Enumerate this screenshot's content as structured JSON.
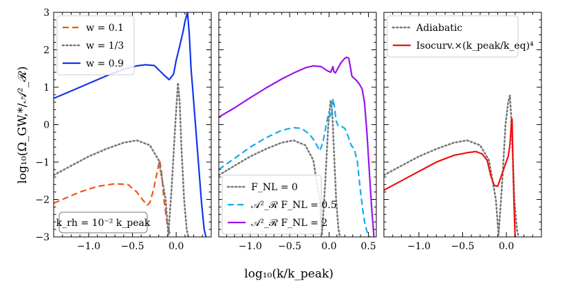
{
  "figure": {
    "xlabel": "log₁₀(k/k_peak)",
    "ylabel": "log₁₀(Ω_GW,*/𝒜²_ℛ)"
  },
  "chart_data": [
    {
      "type": "line",
      "panel": "left",
      "xlim": [
        -1.4,
        0.4
      ],
      "ylim": [
        -3,
        3
      ],
      "xticks": [
        -1.0,
        -0.5,
        0.0
      ],
      "xtick_labels": [
        "−1.0",
        "−0.5",
        "0.0"
      ],
      "yticks": [
        -3,
        -2,
        -1,
        0,
        1,
        2,
        3
      ],
      "ytick_labels": [
        "−3",
        "−2",
        "−1",
        "0",
        "1",
        "2",
        "3"
      ],
      "legend_position": "upper-left",
      "annotation": "k_rh = 10⁻² k_peak",
      "series": [
        {
          "name": "w = 0.1",
          "color": "#ee5511",
          "dash": "dashed",
          "x": [
            -1.4,
            -1.3,
            -1.1,
            -0.9,
            -0.7,
            -0.55,
            -0.45,
            -0.38,
            -0.33,
            -0.3,
            -0.26,
            -0.22,
            -0.19,
            -0.17,
            -0.14,
            -0.1,
            -0.06
          ],
          "y": [
            -2.1,
            -2.0,
            -1.8,
            -1.65,
            -1.58,
            -1.6,
            -1.8,
            -2.02,
            -2.15,
            -2.08,
            -1.75,
            -1.3,
            -0.95,
            -1.2,
            -2.0,
            -2.7,
            -3.0
          ]
        },
        {
          "name": "w = 1/3",
          "color": "#777777",
          "dash": "dotted",
          "x": [
            -1.4,
            -1.2,
            -1.0,
            -0.8,
            -0.6,
            -0.45,
            -0.3,
            -0.2,
            -0.12,
            -0.09,
            -0.05,
            -0.01,
            0.02,
            0.04,
            0.06,
            0.09,
            0.12,
            0.14
          ],
          "y": [
            -1.35,
            -1.1,
            -0.85,
            -0.65,
            -0.48,
            -0.42,
            -0.55,
            -0.95,
            -2.0,
            -2.95,
            -1.6,
            0.0,
            1.12,
            0.6,
            -0.6,
            -2.0,
            -2.8,
            -3.0
          ]
        },
        {
          "name": "w = 0.9",
          "color": "#1133ee",
          "dash": "solid",
          "x": [
            -1.4,
            -1.2,
            -1.0,
            -0.8,
            -0.6,
            -0.45,
            -0.35,
            -0.25,
            -0.15,
            -0.08,
            -0.03,
            0.0,
            0.03,
            0.06,
            0.08,
            0.1,
            0.13,
            0.15,
            0.17,
            0.2,
            0.23,
            0.26,
            0.29,
            0.32,
            0.34
          ],
          "y": [
            0.7,
            0.9,
            1.1,
            1.3,
            1.48,
            1.57,
            1.6,
            1.58,
            1.35,
            1.2,
            1.35,
            1.72,
            2.0,
            2.3,
            2.5,
            2.75,
            3.0,
            2.4,
            1.5,
            0.6,
            -0.3,
            -1.2,
            -2.1,
            -2.8,
            -3.0
          ]
        }
      ]
    },
    {
      "type": "line",
      "panel": "middle",
      "xlim": [
        -1.4,
        0.6
      ],
      "ylim": [
        -3,
        3
      ],
      "xticks": [
        -1.0,
        -0.5,
        0.0,
        0.5
      ],
      "xtick_labels": [
        "−1.0",
        "−0.5",
        "0.0",
        "0.5"
      ],
      "yticks": [
        -3,
        -2,
        -1,
        0,
        1,
        2,
        3
      ],
      "legend_position": "lower-left",
      "series": [
        {
          "name": "F_NL = 0",
          "color": "#777777",
          "dash": "dotted",
          "x": [
            -1.4,
            -1.2,
            -1.0,
            -0.8,
            -0.6,
            -0.45,
            -0.3,
            -0.2,
            -0.12,
            -0.09,
            -0.05,
            -0.01,
            0.02,
            0.04,
            0.06,
            0.09,
            0.12,
            0.14
          ],
          "y": [
            -1.35,
            -1.1,
            -0.85,
            -0.65,
            -0.48,
            -0.42,
            -0.55,
            -0.95,
            -2.0,
            -2.95,
            -1.6,
            0.0,
            0.65,
            0.35,
            -0.6,
            -2.0,
            -2.8,
            -3.0
          ]
        },
        {
          "name": "𝒜²_ℛ F_NL = 0.5",
          "color": "#11aaee",
          "dash": "dashed",
          "x": [
            -1.4,
            -1.2,
            -1.0,
            -0.8,
            -0.6,
            -0.45,
            -0.35,
            -0.25,
            -0.18,
            -0.12,
            -0.08,
            -0.04,
            0.0,
            0.03,
            0.05,
            0.07,
            0.09,
            0.12,
            0.16,
            0.2,
            0.24,
            0.28,
            0.32,
            0.36,
            0.4,
            0.43,
            0.46,
            0.49,
            0.52
          ],
          "y": [
            -1.2,
            -0.9,
            -0.6,
            -0.35,
            -0.15,
            -0.08,
            -0.1,
            -0.25,
            -0.45,
            -0.7,
            -0.5,
            -0.05,
            0.35,
            0.2,
            0.7,
            0.45,
            0.1,
            -0.05,
            -0.05,
            -0.1,
            -0.3,
            -0.55,
            -0.65,
            -1.0,
            -1.8,
            -2.3,
            -2.7,
            -2.9,
            -3.0
          ]
        },
        {
          "name": "𝒜²_ℛ F_NL = 2",
          "color": "#9911ee",
          "dash": "solid",
          "x": [
            -1.4,
            -1.2,
            -1.0,
            -0.8,
            -0.6,
            -0.45,
            -0.3,
            -0.2,
            -0.1,
            -0.03,
            0.02,
            0.04,
            0.05,
            0.06,
            0.08,
            0.11,
            0.15,
            0.19,
            0.22,
            0.25,
            0.27,
            0.29,
            0.31,
            0.34,
            0.38,
            0.42,
            0.45,
            0.48,
            0.51,
            0.54,
            0.57
          ],
          "y": [
            0.2,
            0.45,
            0.72,
            0.98,
            1.22,
            1.38,
            1.52,
            1.57,
            1.55,
            1.45,
            1.4,
            1.5,
            1.55,
            1.42,
            1.38,
            1.5,
            1.65,
            1.75,
            1.8,
            1.78,
            1.55,
            1.3,
            1.25,
            1.2,
            1.1,
            0.95,
            0.6,
            -0.2,
            -1.2,
            -2.2,
            -3.0
          ]
        }
      ]
    },
    {
      "type": "line",
      "panel": "right",
      "xlim": [
        -1.4,
        0.4
      ],
      "ylim": [
        -3,
        3
      ],
      "xticks": [
        -1.0,
        -0.5,
        0.0
      ],
      "xtick_labels": [
        "−1.0",
        "−0.5",
        "0.0"
      ],
      "yticks": [
        -3,
        -2,
        -1,
        0,
        1,
        2,
        3
      ],
      "legend_position": "upper-left",
      "series": [
        {
          "name": "Adiabatic",
          "color": "#777777",
          "dash": "dotted",
          "x": [
            -1.4,
            -1.2,
            -1.0,
            -0.8,
            -0.6,
            -0.45,
            -0.3,
            -0.2,
            -0.12,
            -0.09,
            -0.05,
            -0.01,
            0.02,
            0.04,
            0.06,
            0.09,
            0.12,
            0.14
          ],
          "y": [
            -1.35,
            -1.1,
            -0.85,
            -0.65,
            -0.48,
            -0.42,
            -0.55,
            -0.95,
            -2.0,
            -2.95,
            -1.6,
            0.0,
            0.6,
            0.78,
            0.0,
            -2.0,
            -2.8,
            -3.0
          ]
        },
        {
          "name": "Isocurv.×(k_peak/k_eq)⁴",
          "color": "#ee1111",
          "dash": "solid",
          "x": [
            -1.4,
            -1.2,
            -1.0,
            -0.8,
            -0.6,
            -0.45,
            -0.35,
            -0.28,
            -0.22,
            -0.18,
            -0.14,
            -0.1,
            -0.07,
            -0.04,
            -0.01,
            0.02,
            0.04,
            0.05,
            0.06,
            0.065,
            0.07,
            0.08,
            0.09,
            0.1
          ],
          "y": [
            -1.75,
            -1.5,
            -1.25,
            -1.0,
            -0.82,
            -0.75,
            -0.72,
            -0.78,
            -0.95,
            -1.35,
            -1.62,
            -1.65,
            -1.45,
            -1.25,
            -1.05,
            -0.85,
            -0.55,
            -0.2,
            0.15,
            0.15,
            -0.5,
            -1.5,
            -2.4,
            -3.0
          ]
        }
      ]
    }
  ]
}
